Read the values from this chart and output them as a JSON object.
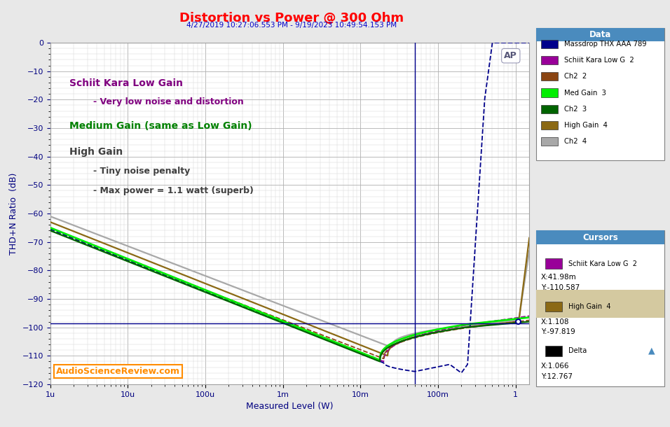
{
  "title": "Distortion vs Power @ 300 Ohm",
  "subtitle": "4/27/2019 10:27:06.553 PM - 9/19/2023 10:49:54.153 PM",
  "xlabel": "Measured Level (W)",
  "ylabel": "THD+N Ratio  (dB)",
  "ylim": [
    -120,
    0
  ],
  "yticks": [
    0,
    -10,
    -20,
    -30,
    -40,
    -50,
    -60,
    -70,
    -80,
    -90,
    -100,
    -110,
    -120
  ],
  "xtick_labels": [
    "1u",
    "10u",
    "100u",
    "1m",
    "10m",
    "100m",
    "1"
  ],
  "xtick_vals": [
    1e-06,
    1e-05,
    0.0001,
    0.001,
    0.01,
    0.1,
    1
  ],
  "watermark": "AP",
  "asr_text": "AudioScienceReview.com",
  "title_color": "#FF0000",
  "subtitle_color": "#0000CC",
  "asr_color": "#FF8C00",
  "background_plot": "#FFFFFF",
  "background_outer": "#E8E8E8",
  "grid_major_color": "#B0B0B0",
  "grid_minor_color": "#D8D8D8",
  "annotation1_color": "#800080",
  "annotation2_color": "#008000",
  "annotation3_color": "#404040",
  "cursor_line_color": "#00008B",
  "cursor_hline_y": -98.5,
  "cursor_vline_x": 0.05,
  "legend_entries": [
    {
      "label": "Massdrop THX AAA 789",
      "color": "#00008B"
    },
    {
      "label": "Schiit Kara Low G  2",
      "color": "#990099"
    },
    {
      "label": "Ch2  2",
      "color": "#8B4513"
    },
    {
      "label": "Med Gain  3",
      "color": "#00EE00"
    },
    {
      "label": "Ch2  3",
      "color": "#006400"
    },
    {
      "label": "High Gain  4",
      "color": "#8B6914"
    },
    {
      "label": "Ch2  4",
      "color": "#A8A8A8"
    }
  ]
}
